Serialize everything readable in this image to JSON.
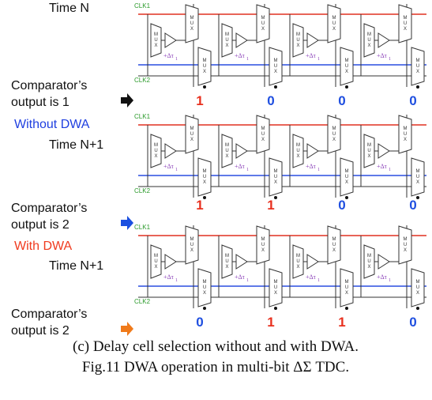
{
  "panels": [
    {
      "mode": null,
      "mode_color": null,
      "time": "Time N",
      "clk1": "CLK1",
      "clk2": "CLK2",
      "comparator": [
        "Comparator’s",
        "output is 1"
      ],
      "arrow_color": "#111111",
      "outputs": [
        "1",
        "0",
        "0",
        "0"
      ]
    },
    {
      "mode": "Without DWA",
      "mode_color": "#1f3fe0",
      "time": "Time N+1",
      "clk1": "CLK1",
      "clk2": "CLK2",
      "comparator": [
        "Comparator’s",
        "output is 2"
      ],
      "arrow_color": "#1a4fe0",
      "outputs": [
        "1",
        "1",
        "0",
        "0"
      ]
    },
    {
      "mode": "With DWA",
      "mode_color": "#f03a1e",
      "time": "Time N+1",
      "clk1": "CLK1",
      "clk2": "CLK2",
      "comparator": [
        "Comparator’s",
        "output is 2"
      ],
      "arrow_color": "#f07a1a",
      "outputs": [
        "0",
        "1",
        "1",
        "0"
      ]
    }
  ],
  "mux_letters": [
    "M",
    "U",
    "X"
  ],
  "delay_label": "+Δτ",
  "delay_sub": "1",
  "caption": [
    "(c) Delay cell selection without and with DWA.",
    "Fig.11 DWA operation in multi-bit ΔΣ TDC."
  ]
}
